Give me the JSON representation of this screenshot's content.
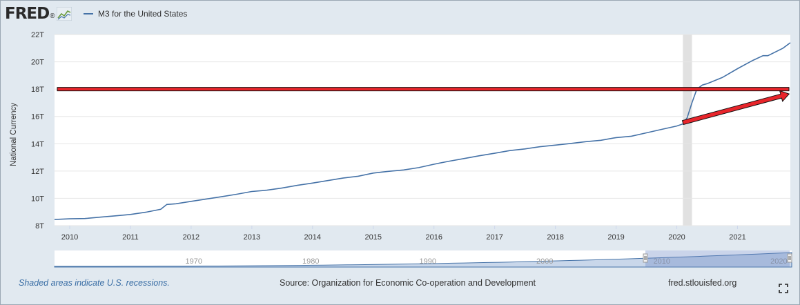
{
  "header": {
    "logo_text": "FRED",
    "logo_mark": "®",
    "legend_label": "M3 for the United States"
  },
  "chart_data": {
    "type": "line",
    "title": "",
    "ylabel": "National Currency",
    "xlabel": "",
    "xlim": [
      2009.75,
      2021.87
    ],
    "ylim": [
      8,
      22
    ],
    "x_ticks": [
      2010,
      2011,
      2012,
      2013,
      2014,
      2015,
      2016,
      2017,
      2018,
      2019,
      2020,
      2021
    ],
    "y_ticks": [
      8,
      10,
      12,
      14,
      16,
      18,
      20,
      22
    ],
    "y_tick_labels": [
      "8T",
      "10T",
      "12T",
      "14T",
      "16T",
      "18T",
      "20T",
      "22T"
    ],
    "grid": "horizontal",
    "series": [
      {
        "name": "M3 for the United States",
        "color": "#4572a7",
        "x": [
          2009.75,
          2010.0,
          2010.25,
          2010.5,
          2010.75,
          2011.0,
          2011.25,
          2011.5,
          2011.6,
          2011.75,
          2012.0,
          2012.25,
          2012.5,
          2012.75,
          2013.0,
          2013.25,
          2013.5,
          2013.75,
          2014.0,
          2014.25,
          2014.5,
          2014.75,
          2015.0,
          2015.25,
          2015.5,
          2015.75,
          2016.0,
          2016.25,
          2016.5,
          2016.75,
          2017.0,
          2017.25,
          2017.5,
          2017.75,
          2018.0,
          2018.25,
          2018.5,
          2018.75,
          2019.0,
          2019.25,
          2019.5,
          2019.75,
          2020.0,
          2020.1,
          2020.17,
          2020.25,
          2020.33,
          2020.42,
          2020.5,
          2020.75,
          2021.0,
          2021.25,
          2021.42,
          2021.5,
          2021.75,
          2021.87
        ],
        "y": [
          8.45,
          8.5,
          8.52,
          8.62,
          8.72,
          8.82,
          8.98,
          9.2,
          9.55,
          9.6,
          9.78,
          9.95,
          10.12,
          10.3,
          10.5,
          10.6,
          10.76,
          10.95,
          11.12,
          11.3,
          11.48,
          11.62,
          11.85,
          11.98,
          12.08,
          12.25,
          12.5,
          12.72,
          12.92,
          13.12,
          13.3,
          13.5,
          13.62,
          13.78,
          13.9,
          14.02,
          14.15,
          14.25,
          14.45,
          14.55,
          14.8,
          15.05,
          15.3,
          15.45,
          15.9,
          17.0,
          18.0,
          18.3,
          18.4,
          18.85,
          19.5,
          20.1,
          20.45,
          20.45,
          21.0,
          21.4
        ]
      }
    ],
    "recession": [
      2020.1,
      2020.25
    ],
    "annotations": {
      "horizontal_line_value": 18,
      "arrow_from": [
        2020.1,
        15.55
      ],
      "arrow_to": [
        2021.85,
        17.65
      ]
    },
    "navigator": {
      "tick_labels": [
        "1970",
        "1980",
        "1990",
        "2000",
        "2010",
        "2020"
      ],
      "tick_values": [
        1970,
        1980,
        1990,
        2000,
        2010,
        2020
      ],
      "range": [
        1959,
        2022
      ]
    }
  },
  "footer": {
    "note": "Shaded areas indicate U.S. recessions.",
    "source": "Source: Organization for Economic Co-operation and Development",
    "site": "fred.stlouisfed.org"
  },
  "icons": {
    "expand": "expand-icon"
  }
}
